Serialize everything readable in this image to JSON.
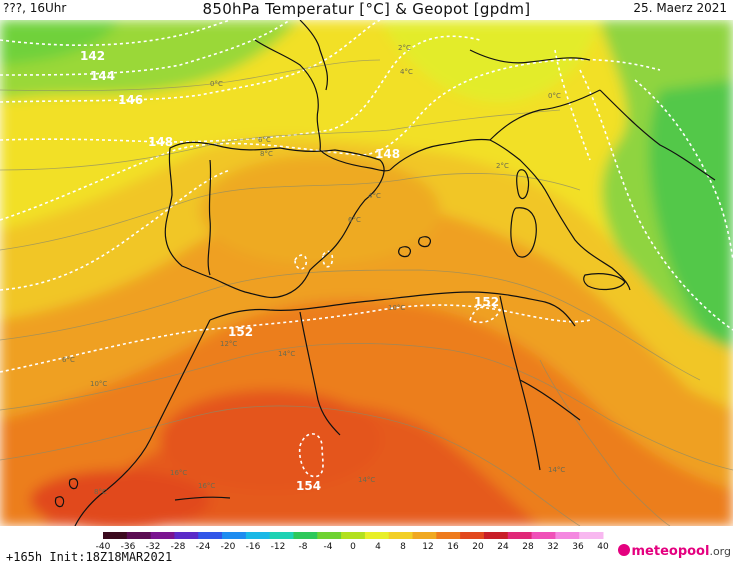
{
  "header": {
    "left": "???, 16Uhr",
    "title": "850hPa Temperatur [°C] & Geopot [gpdm]",
    "date": "25. Maerz 2021"
  },
  "footer": {
    "run_info": "+165h Init:18Z18MAR2021",
    "logo": "meteopool",
    "logo_tld": ".org"
  },
  "colorbar": {
    "ticks": [
      "-40",
      "-36",
      "-32",
      "-28",
      "-24",
      "-20",
      "-16",
      "-12",
      "-8",
      "-4",
      "0",
      "4",
      "8",
      "12",
      "16",
      "20",
      "24",
      "28",
      "32",
      "36",
      "40"
    ],
    "colors": [
      "#3b0a1e",
      "#5a0c52",
      "#7a1490",
      "#5a2bc8",
      "#3256e8",
      "#1e8cf0",
      "#19b8e6",
      "#1ed2b4",
      "#2ec85a",
      "#6fd232",
      "#b2e01e",
      "#e8ef28",
      "#f2cf26",
      "#f0a820",
      "#ee7a1c",
      "#e2481e",
      "#c81e28",
      "#e02878",
      "#f050b8",
      "#f488e0",
      "#f8b8f0"
    ]
  },
  "isohypse_labels": [
    "142",
    "144",
    "146",
    "148",
    "148",
    "152",
    "152",
    "154"
  ],
  "isotherm_labels": [
    "0°C",
    "2°C",
    "4°C",
    "6°C",
    "8°C",
    "0°C",
    "2°C",
    "4°C",
    "6°C",
    "10°C",
    "12°C",
    "14°C",
    "16°C",
    "16°C",
    "14°C",
    "14°C",
    "8°C",
    "10°C",
    "6°C"
  ]
}
